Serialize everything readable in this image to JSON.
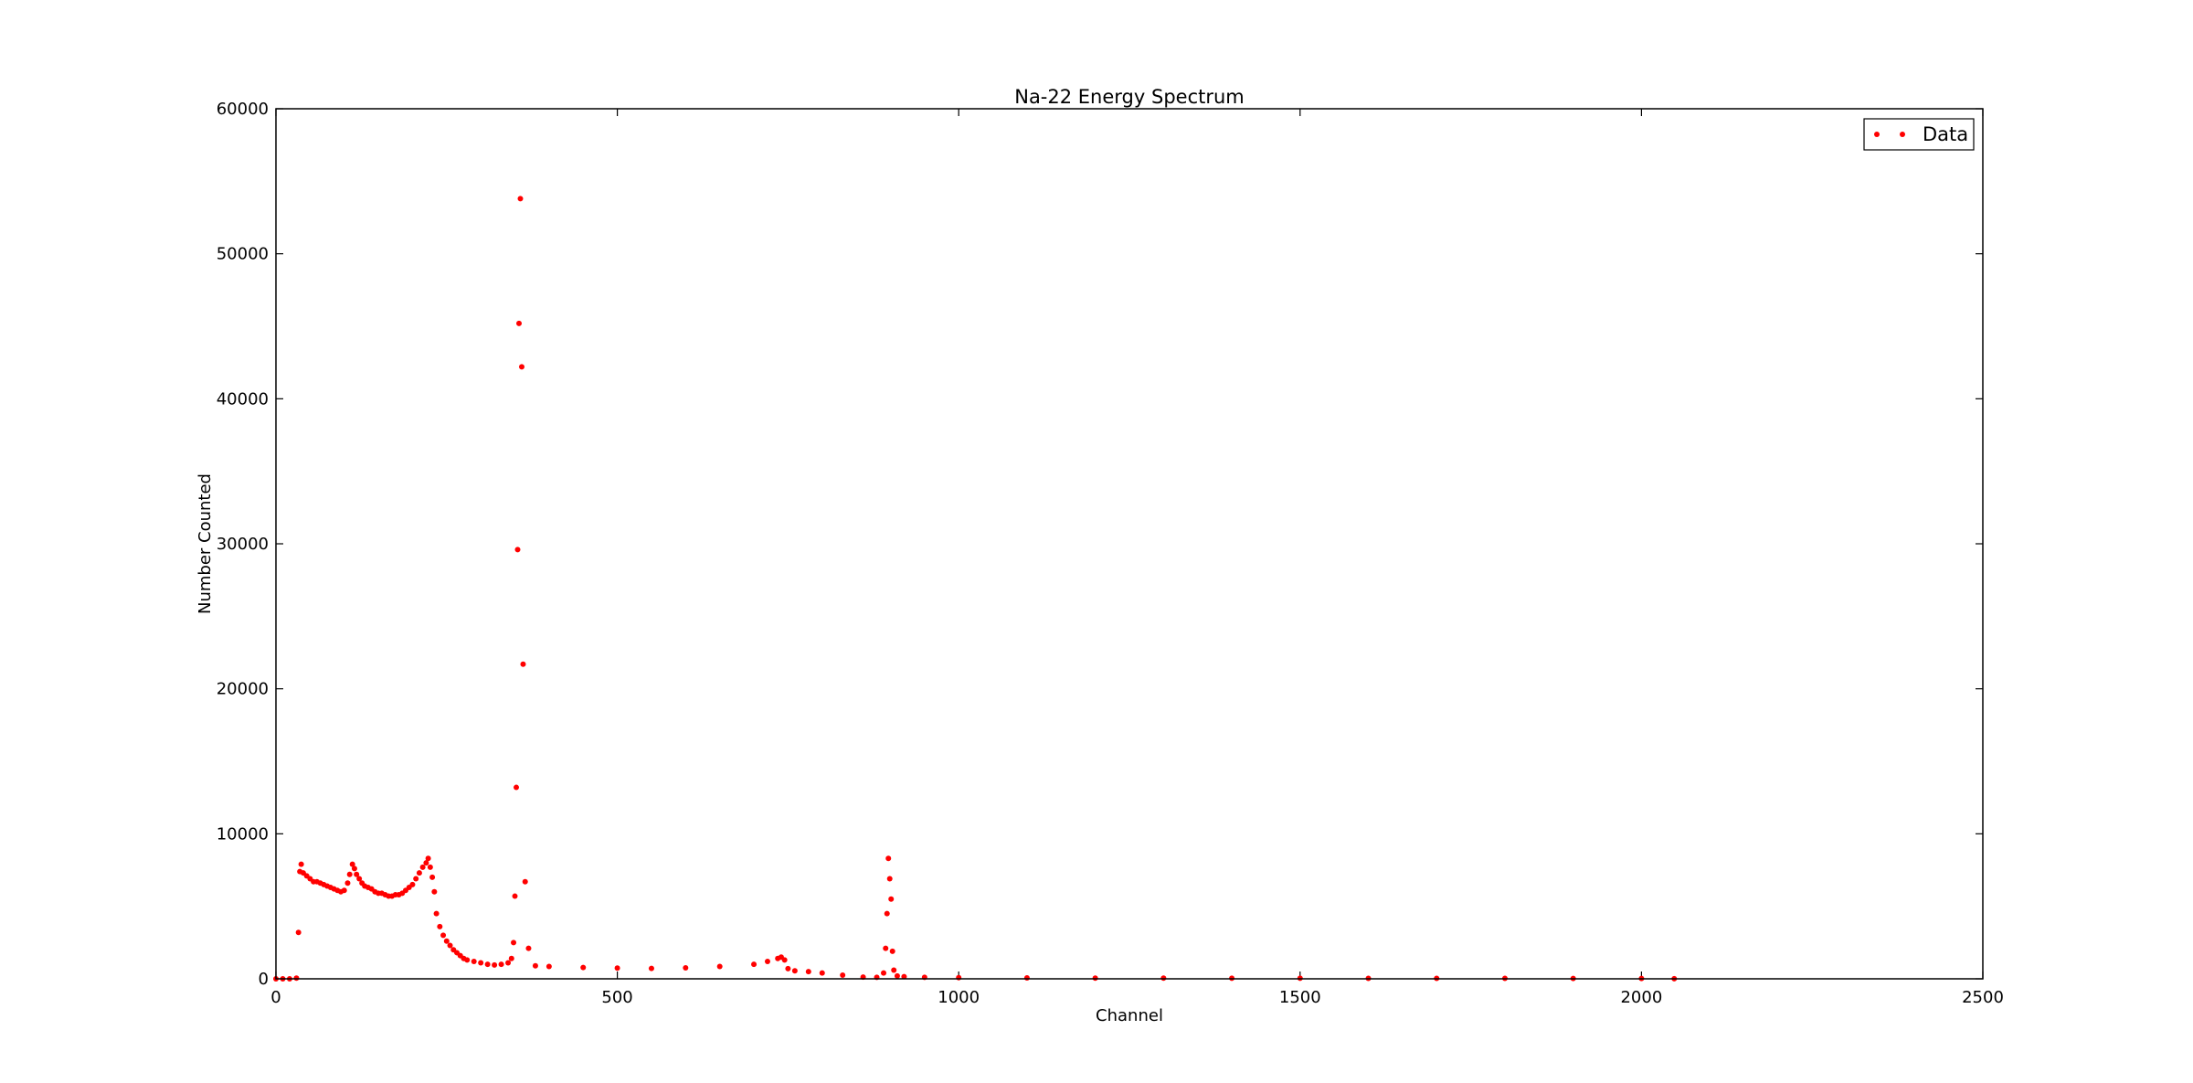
{
  "chart_data": {
    "type": "scatter",
    "title": "Na-22 Energy Spectrum",
    "xlabel": "Channel",
    "ylabel": "Number Counted",
    "xlim": [
      0,
      2500
    ],
    "ylim": [
      0,
      60000
    ],
    "x_ticks": [
      "0",
      "500",
      "1000",
      "1500",
      "2000",
      "2500"
    ],
    "y_ticks": [
      "0",
      "10000",
      "20000",
      "30000",
      "40000",
      "50000",
      "60000"
    ],
    "grid": false,
    "legend_position": "top-right",
    "marker_color": "#ff0000",
    "series": [
      {
        "name": "Data",
        "x": [
          0,
          10,
          20,
          30,
          33,
          35,
          37,
          40,
          45,
          50,
          55,
          60,
          65,
          70,
          75,
          80,
          85,
          90,
          95,
          100,
          105,
          108,
          112,
          115,
          118,
          122,
          126,
          130,
          135,
          140,
          145,
          150,
          155,
          160,
          165,
          170,
          175,
          180,
          185,
          190,
          195,
          200,
          205,
          210,
          215,
          220,
          223,
          226,
          229,
          232,
          235,
          240,
          245,
          250,
          255,
          260,
          265,
          270,
          275,
          280,
          290,
          300,
          310,
          320,
          330,
          340,
          345,
          348,
          350,
          352,
          354,
          356,
          358,
          360,
          362,
          365,
          370,
          380,
          400,
          450,
          500,
          550,
          600,
          650,
          700,
          720,
          735,
          740,
          745,
          750,
          760,
          780,
          800,
          830,
          860,
          880,
          890,
          893,
          895,
          897,
          899,
          901,
          903,
          905,
          910,
          920,
          950,
          1000,
          1100,
          1200,
          1300,
          1400,
          1500,
          1600,
          1700,
          1800,
          1900,
          2000,
          2048
        ],
        "y": [
          0,
          0,
          0,
          50,
          3200,
          7400,
          7900,
          7300,
          7100,
          6900,
          6700,
          6700,
          6600,
          6500,
          6400,
          6300,
          6200,
          6100,
          6000,
          6100,
          6600,
          7200,
          7900,
          7600,
          7200,
          6900,
          6600,
          6400,
          6300,
          6200,
          6000,
          5900,
          5900,
          5800,
          5700,
          5700,
          5800,
          5800,
          5900,
          6100,
          6300,
          6500,
          6900,
          7300,
          7700,
          8000,
          8300,
          7700,
          7000,
          6000,
          4500,
          3600,
          3000,
          2600,
          2300,
          2000,
          1800,
          1600,
          1400,
          1300,
          1200,
          1100,
          1000,
          950,
          1000,
          1100,
          1400,
          2500,
          5700,
          13200,
          29600,
          45200,
          53800,
          42200,
          21700,
          6700,
          2100,
          900,
          850,
          780,
          740,
          720,
          760,
          850,
          1000,
          1200,
          1400,
          1500,
          1300,
          700,
          550,
          500,
          400,
          250,
          120,
          100,
          400,
          2100,
          4500,
          8300,
          6900,
          5500,
          1900,
          600,
          200,
          150,
          100,
          80,
          60,
          50,
          50,
          40,
          40,
          30,
          30,
          30,
          20,
          20,
          10
        ]
      }
    ]
  }
}
